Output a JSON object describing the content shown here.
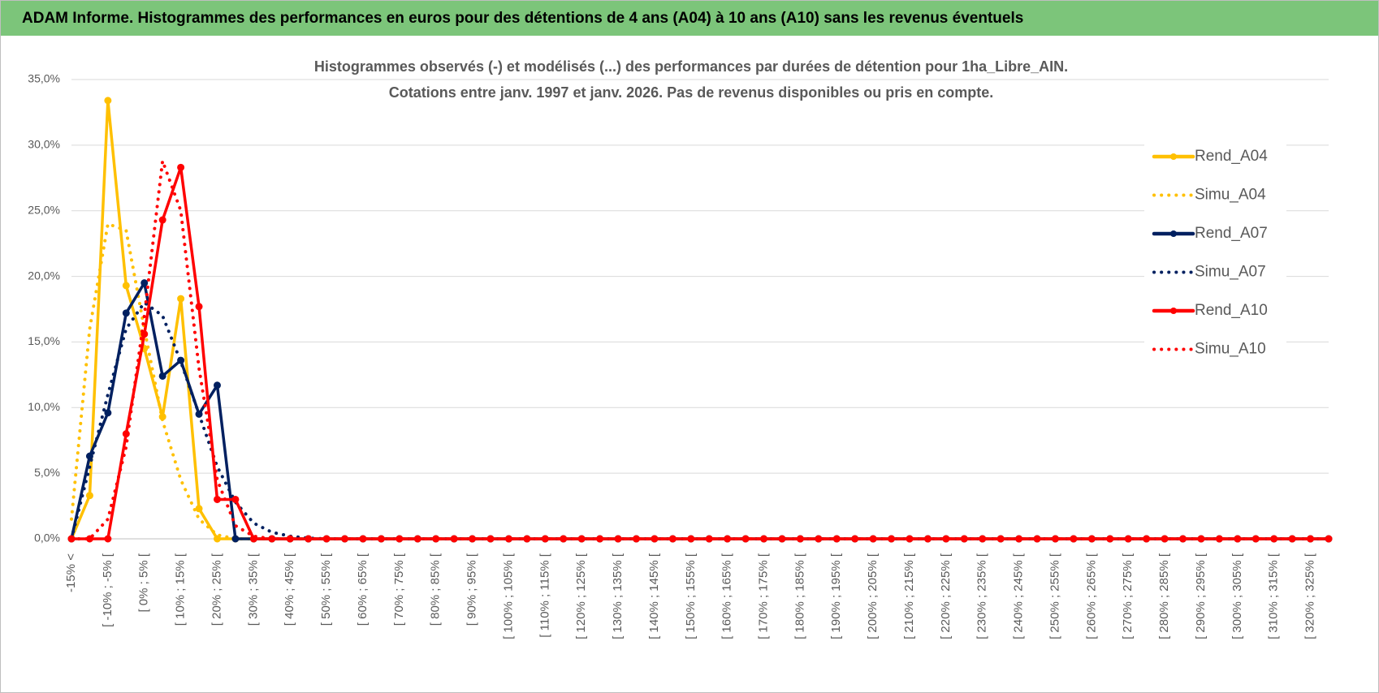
{
  "header": {
    "title": "ADAM Informe. Histogrammes des performances en euros pour des détentions de 4 ans (A04) à 10 ans (A10) sans les revenus éventuels"
  },
  "chart_data": {
    "type": "line",
    "title": [
      "Histogrammes observés (-) et modélisés (...) des performances par durées de détention pour 1ha_Libre_AIN.",
      "Cotations entre janv. 1997 et janv. 2026. Pas de revenus disponibles ou pris en compte."
    ],
    "categories": [
      "-15% <",
      null,
      "[ -10% ; -5% [",
      null,
      "[ 0% ; 5% [",
      null,
      "[ 10% ; 15% [",
      null,
      "[ 20% ; 25% [",
      null,
      "[ 30% ; 35% [",
      null,
      "[ 40% ; 45% [",
      null,
      "[ 50% ; 55% [",
      null,
      "[ 60% ; 65% [",
      null,
      "[ 70% ; 75% [",
      null,
      "[ 80% ; 85% [",
      null,
      "[ 90% ; 95% [",
      null,
      "[ 100% ; 105% [",
      null,
      "[ 110% ; 115% [",
      null,
      "[ 120% ; 125% [",
      null,
      "[ 130% ; 135% [",
      null,
      "[ 140% ; 145% [",
      null,
      "[ 150% ; 155% [",
      null,
      "[ 160% ; 165% [",
      null,
      "[ 170% ; 175% [",
      null,
      "[ 180% ; 185% [",
      null,
      "[ 190% ; 195% [",
      null,
      "[ 200% ; 205% [",
      null,
      "[ 210% ; 215% [",
      null,
      "[ 220% ; 225% [",
      null,
      "[ 230% ; 235% [",
      null,
      "[ 240% ; 245% [",
      null,
      "[ 250% ; 255% [",
      null,
      "[ 260% ; 265% [",
      null,
      "[ 270% ; 275% [",
      null,
      "[ 280% ; 285% [",
      null,
      "[ 290% ; 295% [",
      null,
      "[ 300% ; 305% [",
      null,
      "[ 310% ; 315% [",
      null,
      "[ 320% ; 325% [",
      null
    ],
    "series": [
      {
        "name": "Rend_A04",
        "color": "#FFC000",
        "line_style": "solid",
        "markers": true,
        "values": [
          0,
          3.3,
          33.4,
          19.3,
          14.5,
          9.3,
          18.3,
          2.3,
          0,
          0,
          0,
          0,
          0,
          0,
          0,
          0,
          0,
          0,
          0,
          0,
          0,
          0,
          0,
          0,
          0,
          0,
          0,
          0,
          0,
          0,
          0,
          0,
          0,
          0,
          0,
          0,
          0,
          0,
          0,
          0,
          0,
          0,
          0,
          0,
          0,
          0,
          0,
          0,
          0,
          0,
          0,
          0,
          0,
          0,
          0,
          0,
          0,
          0,
          0,
          0,
          0,
          0,
          0,
          0,
          0,
          0,
          0,
          0,
          0,
          0
        ]
      },
      {
        "name": "Simu_A04",
        "color": "#FFC000",
        "line_style": "dotted",
        "markers": false,
        "values": [
          1.5,
          16,
          24,
          23.5,
          16,
          9,
          4.5,
          1.5,
          0.3,
          0,
          0,
          0,
          0,
          0,
          0,
          0,
          0,
          0,
          0,
          0,
          0,
          0,
          0,
          0,
          0,
          0,
          0,
          0,
          0,
          0,
          0,
          0,
          0,
          0,
          0,
          0,
          0,
          0,
          0,
          0,
          0,
          0,
          0,
          0,
          0,
          0,
          0,
          0,
          0,
          0,
          0,
          0,
          0,
          0,
          0,
          0,
          0,
          0,
          0,
          0,
          0,
          0,
          0,
          0,
          0,
          0,
          0,
          0,
          0,
          0
        ]
      },
      {
        "name": "Rend_A07",
        "color": "#002060",
        "line_style": "solid",
        "markers": true,
        "values": [
          0,
          6.3,
          9.6,
          17.2,
          19.5,
          12.4,
          13.6,
          9.5,
          11.7,
          0,
          0,
          0,
          0,
          0,
          0,
          0,
          0,
          0,
          0,
          0,
          0,
          0,
          0,
          0,
          0,
          0,
          0,
          0,
          0,
          0,
          0,
          0,
          0,
          0,
          0,
          0,
          0,
          0,
          0,
          0,
          0,
          0,
          0,
          0,
          0,
          0,
          0,
          0,
          0,
          0,
          0,
          0,
          0,
          0,
          0,
          0,
          0,
          0,
          0,
          0,
          0,
          0,
          0,
          0,
          0,
          0,
          0,
          0,
          0,
          0
        ]
      },
      {
        "name": "Simu_A07",
        "color": "#002060",
        "line_style": "dotted",
        "markers": false,
        "values": [
          0,
          5.5,
          11,
          16,
          18,
          17,
          13.5,
          9.5,
          5.5,
          2.8,
          1.2,
          0.5,
          0.2,
          0.05,
          0,
          0,
          0,
          0,
          0,
          0,
          0,
          0,
          0,
          0,
          0,
          0,
          0,
          0,
          0,
          0,
          0,
          0,
          0,
          0,
          0,
          0,
          0,
          0,
          0,
          0,
          0,
          0,
          0,
          0,
          0,
          0,
          0,
          0,
          0,
          0,
          0,
          0,
          0,
          0,
          0,
          0,
          0,
          0,
          0,
          0,
          0,
          0,
          0,
          0,
          0,
          0,
          0,
          0,
          0,
          0
        ]
      },
      {
        "name": "Rend_A10",
        "color": "#FF0000",
        "line_style": "solid",
        "markers": true,
        "values": [
          0,
          0,
          0,
          8,
          15.6,
          24.3,
          28.3,
          17.7,
          3,
          3,
          0,
          0,
          0,
          0,
          0,
          0,
          0,
          0,
          0,
          0,
          0,
          0,
          0,
          0,
          0,
          0,
          0,
          0,
          0,
          0,
          0,
          0,
          0,
          0,
          0,
          0,
          0,
          0,
          0,
          0,
          0,
          0,
          0,
          0,
          0,
          0,
          0,
          0,
          0,
          0,
          0,
          0,
          0,
          0,
          0,
          0,
          0,
          0,
          0,
          0,
          0,
          0,
          0,
          0,
          0,
          0,
          0,
          0,
          0,
          0
        ]
      },
      {
        "name": "Simu_A10",
        "color": "#FF0000",
        "line_style": "dotted",
        "markers": false,
        "values": [
          0,
          0,
          1.5,
          7,
          17,
          28.8,
          25,
          13,
          4.5,
          1,
          0.2,
          0,
          0,
          0,
          0,
          0,
          0,
          0,
          0,
          0,
          0,
          0,
          0,
          0,
          0,
          0,
          0,
          0,
          0,
          0,
          0,
          0,
          0,
          0,
          0,
          0,
          0,
          0,
          0,
          0,
          0,
          0,
          0,
          0,
          0,
          0,
          0,
          0,
          0,
          0,
          0,
          0,
          0,
          0,
          0,
          0,
          0,
          0,
          0,
          0,
          0,
          0,
          0,
          0,
          0,
          0,
          0,
          0,
          0,
          0
        ]
      }
    ],
    "ylim": [
      0,
      35
    ],
    "yticks": [
      {
        "value": 0,
        "label": "0,0%"
      },
      {
        "value": 5,
        "label": "5,0%"
      },
      {
        "value": 10,
        "label": "10,0%"
      },
      {
        "value": 15,
        "label": "15,0%"
      },
      {
        "value": 20,
        "label": "20,0%"
      },
      {
        "value": 25,
        "label": "25,0%"
      },
      {
        "value": 30,
        "label": "30,0%"
      },
      {
        "value": 35,
        "label": "35,0%"
      }
    ],
    "grid": true,
    "legend": "right"
  }
}
